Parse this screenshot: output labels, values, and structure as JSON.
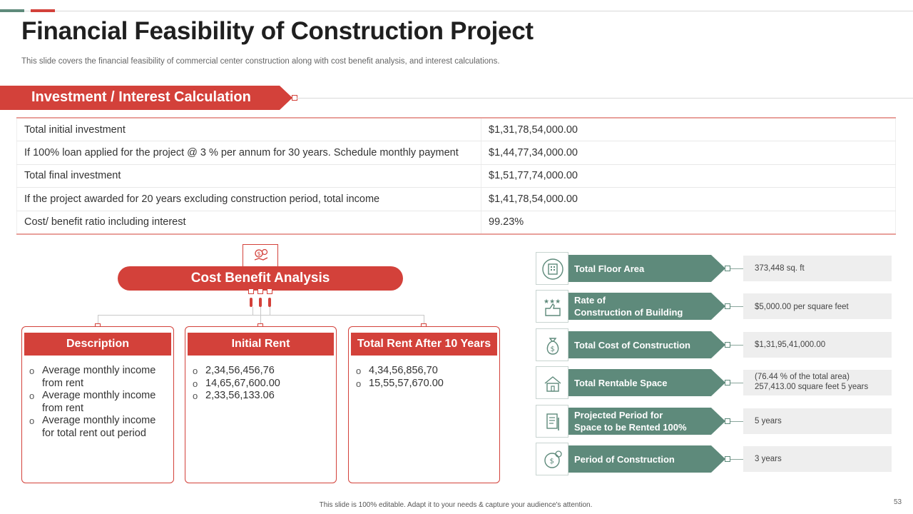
{
  "title": "Financial Feasibility of Construction Project",
  "subtitle": "This slide covers the financial feasibility of commercial center construction along with cost benefit analysis, and interest calculations.",
  "section": {
    "label": "Investment / Interest Calculation"
  },
  "investment_table": [
    {
      "label": "Total initial investment",
      "value": "$1,31,78,54,000.00"
    },
    {
      "label": "If 100% loan applied for the project @ 3 % per annum for 30 years. Schedule monthly payment",
      "value": "$1,44,77,34,000.00"
    },
    {
      "label": "Total final investment",
      "value": "$1,51,77,74,000.00"
    },
    {
      "label": "If the project awarded for 20 years excluding construction period, total income",
      "value": "$1,41,78,54,000.00"
    },
    {
      "label": "Cost/ benefit ratio including interest",
      "value": "99.23%"
    }
  ],
  "cost_benefit": {
    "title": "Cost Benefit Analysis",
    "cards": [
      {
        "header": "Description",
        "items": [
          "Average monthly income from rent",
          "Average monthly income from rent",
          "Average monthly income for total rent out period"
        ]
      },
      {
        "header": "Initial Rent",
        "items": [
          "2,34,56,456,76",
          "14,65,67,600.00",
          "2,33,56,133.06"
        ]
      },
      {
        "header": "Total Rent After 10 Years",
        "items": [
          "4,34,56,856,70",
          "15,55,57,670.00"
        ]
      }
    ]
  },
  "metrics": [
    {
      "label_line1": "Total Floor Area",
      "label_line2": "",
      "value_line1": "373,448 sq. ft",
      "value_line2": "",
      "icon": "building-icon"
    },
    {
      "label_line1": "Rate of",
      "label_line2": "Construction of Building",
      "value_line1": "$5,000.00 per square feet",
      "value_line2": "",
      "icon": "rating-icon"
    },
    {
      "label_line1": "Total Cost of Construction",
      "label_line2": "",
      "value_line1": "$1,31,95,41,000.00",
      "value_line2": "",
      "icon": "money-bag-icon"
    },
    {
      "label_line1": "Total Rentable Space",
      "label_line2": "",
      "value_line1": "(76.44 % of the total area)",
      "value_line2": "257,413.00 square feet 5 years",
      "icon": "house-icon"
    },
    {
      "label_line1": "Projected Period for",
      "label_line2": "Space to be Rented 100%",
      "value_line1": "5 years",
      "value_line2": "",
      "icon": "document-icon"
    },
    {
      "label_line1": "Period of Construction",
      "label_line2": "",
      "value_line1": "3 years",
      "value_line2": "",
      "icon": "clock-money-icon"
    }
  ],
  "footer": "This slide is 100% editable. Adapt it to your needs & capture your audience's attention.",
  "page_number": "53"
}
